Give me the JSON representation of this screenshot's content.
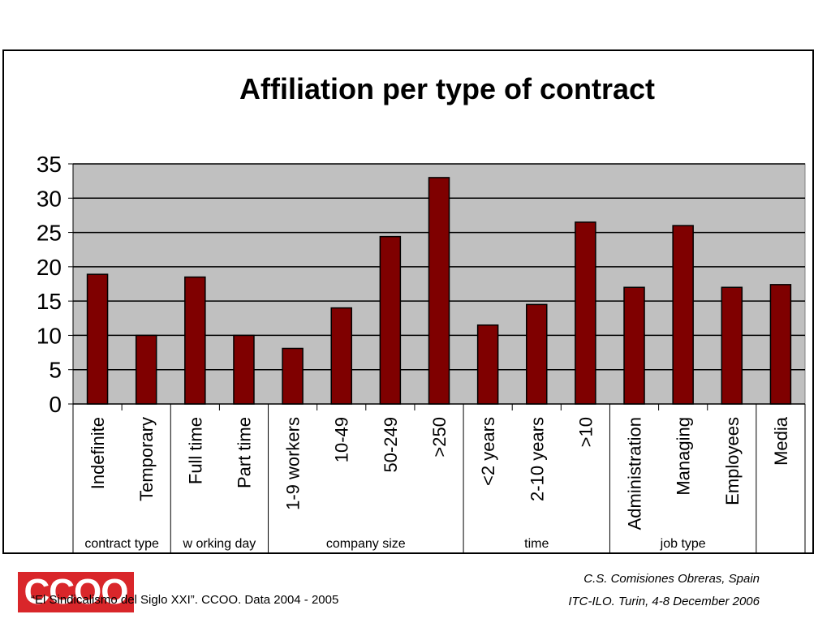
{
  "chart_data": {
    "type": "bar",
    "title": "Affiliation per type of contract",
    "categories": [
      "Indefinite",
      "Temporary",
      "Full time",
      "Part time",
      "1-9 workers",
      "10-49",
      "50-249",
      ">250",
      "<2 years",
      "2-10 years",
      ">10",
      "Administration",
      "Managing",
      "Employees",
      "Media"
    ],
    "values": [
      18.9,
      10,
      18.5,
      10,
      8.1,
      14,
      24.4,
      33,
      11.5,
      14.5,
      26.5,
      17,
      26,
      17,
      17.4
    ],
    "groups": [
      {
        "label": "contract type",
        "count": 2
      },
      {
        "label": "w orking day",
        "count": 2
      },
      {
        "label": "company size",
        "count": 4
      },
      {
        "label": "time",
        "count": 3
      },
      {
        "label": "job type",
        "count": 3
      },
      {
        "label": "",
        "count": 1
      }
    ],
    "ylim": [
      0,
      35
    ],
    "yticks": [
      0,
      5,
      10,
      15,
      20,
      25,
      30,
      35
    ],
    "grid": true,
    "colors": {
      "bar": "#7f0000",
      "plot_bg": "#c0c0c0",
      "grid": "#000000"
    }
  },
  "footer": {
    "logo_text": "CCOO",
    "source": "“El Sindicalismo del Siglo XXI”. CCOO. Data 2004 - 2005",
    "org_line1": "C.S. Comisiones Obreras, Spain",
    "org_line2": "ITC-ILO. Turin, 4-8 December 2006"
  }
}
